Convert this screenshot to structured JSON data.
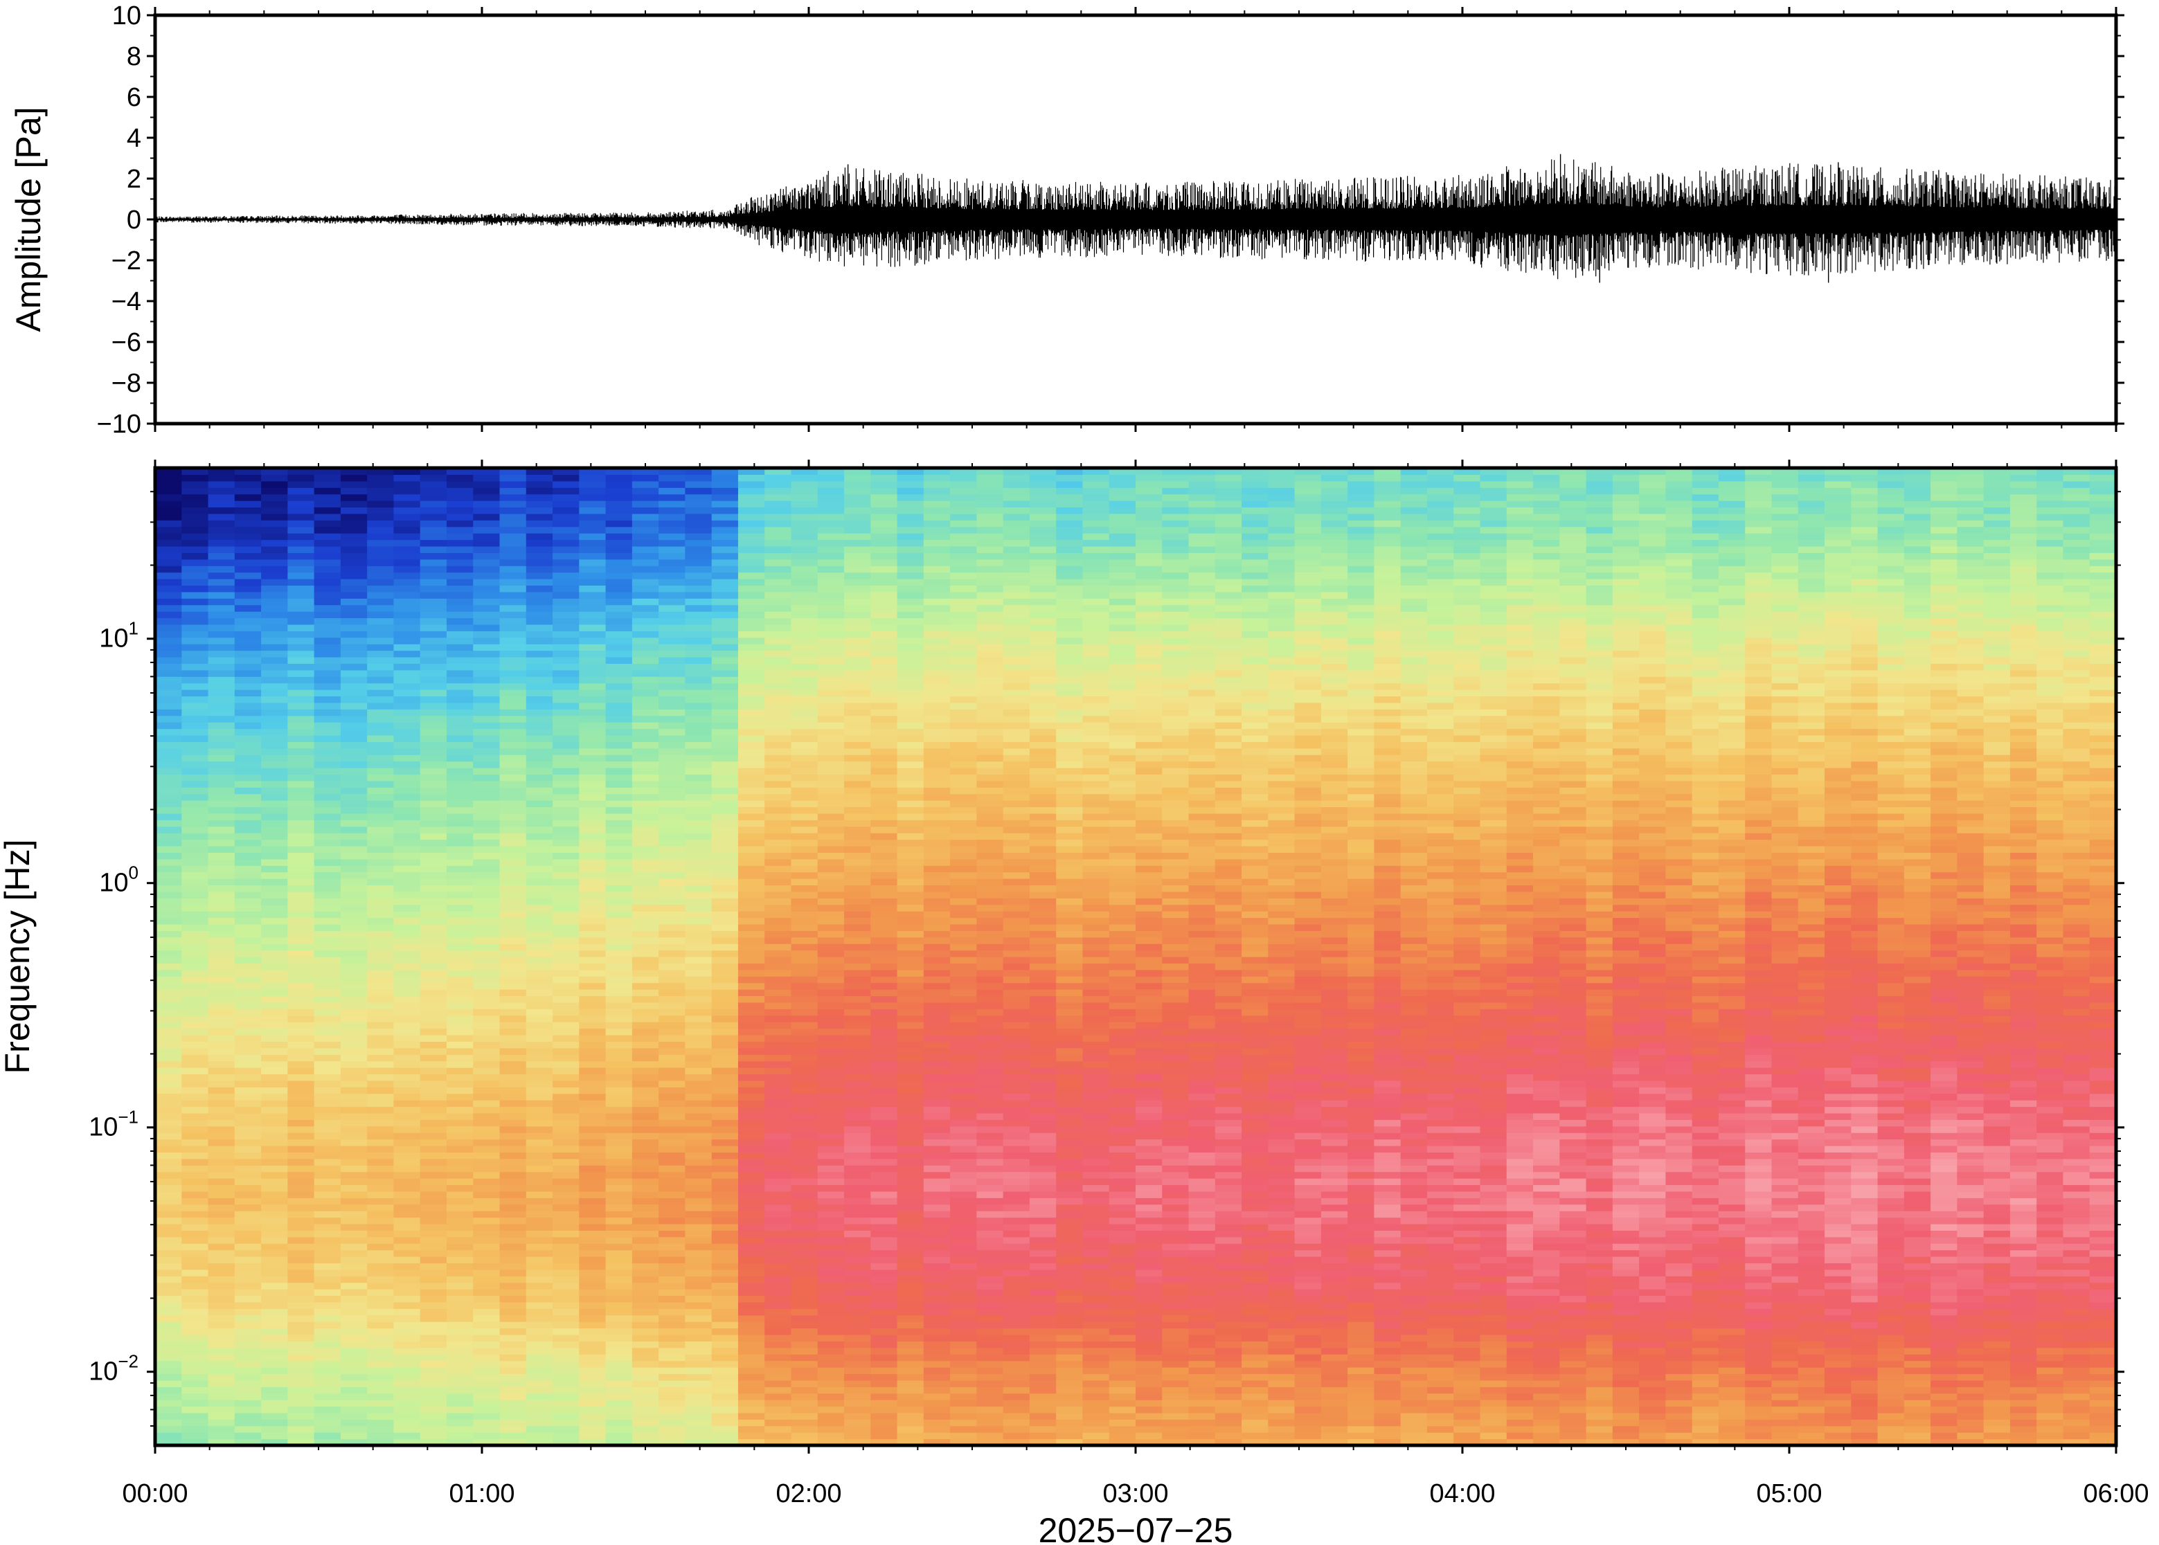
{
  "chart_data": [
    {
      "type": "line",
      "panel": "waveform",
      "ylabel": "Amplitude [Pa]",
      "ylim": [
        -10,
        10
      ],
      "yticks": [
        10,
        8,
        6,
        4,
        2,
        0,
        -2,
        -4,
        -6,
        -8,
        -10
      ],
      "ytick_labels": [
        "10",
        "8",
        "6",
        "4",
        "2",
        "0",
        "−2",
        "−4",
        "−6",
        "−8",
        "−10"
      ],
      "xlim_hours": [
        0,
        6
      ],
      "grid": false,
      "line_color": "#000000",
      "envelope": {
        "t_hours": [
          0,
          0.5,
          1.0,
          1.5,
          1.75,
          1.85,
          2.1,
          2.5,
          3.0,
          3.5,
          4.0,
          4.3,
          4.6,
          5.0,
          5.5,
          6.0
        ],
        "amplitude_pa": [
          0.15,
          0.2,
          0.3,
          0.35,
          0.5,
          1.3,
          2.6,
          2.0,
          1.8,
          2.0,
          2.2,
          3.1,
          2.3,
          2.8,
          2.4,
          2.0
        ]
      },
      "peaks": [
        {
          "t_hours": 2.12,
          "value": 2.7
        },
        {
          "t_hours": 4.3,
          "value": 3.2
        },
        {
          "t_hours": 4.42,
          "value": -3.1
        },
        {
          "t_hours": 5.12,
          "value": -3.1
        },
        {
          "t_hours": 5.15,
          "value": 2.8
        }
      ]
    },
    {
      "type": "heatmap",
      "panel": "spectrogram",
      "ylabel": "Frequency [Hz]",
      "yscale": "log",
      "ylim_hz": [
        0.005,
        50
      ],
      "yticks": [
        {
          "base": "10",
          "exp": "1",
          "value": 10
        },
        {
          "base": "10",
          "exp": "0",
          "value": 1
        },
        {
          "base": "10",
          "exp": "−1",
          "value": 0.1
        },
        {
          "base": "10",
          "exp": "−2",
          "value": 0.01
        }
      ],
      "colormap": "rainbow",
      "colormap_stops": [
        "#0b0b6e",
        "#1b3fd0",
        "#2f8fe8",
        "#55cfe8",
        "#8ee6b0",
        "#c8f29a",
        "#f2e58c",
        "#f5c262",
        "#f29a4e",
        "#ef6a50",
        "#f06072",
        "#f8a0a8"
      ],
      "level_model": {
        "t_hours": [
          0,
          1.0,
          1.75,
          1.85,
          3.0,
          4.0,
          5.0,
          6.0
        ],
        "offset": [
          0.0,
          0.06,
          0.12,
          0.3,
          0.3,
          0.32,
          0.34,
          0.35
        ],
        "description_ref": "relative power 0-1 vs log10 frequency"
      },
      "spectrum_profile": {
        "log10_hz": [
          -2.3,
          -2.0,
          -1.7,
          -1.3,
          -1.0,
          -0.5,
          0.0,
          0.5,
          1.0,
          1.4,
          1.7
        ],
        "relative_power": [
          0.38,
          0.45,
          0.56,
          0.62,
          0.6,
          0.5,
          0.4,
          0.3,
          0.18,
          0.05,
          0.0
        ]
      }
    }
  ],
  "xaxis": {
    "tick_labels": [
      "00:00",
      "01:00",
      "02:00",
      "03:00",
      "04:00",
      "05:00",
      "06:00"
    ],
    "label": "2025−07−25"
  }
}
